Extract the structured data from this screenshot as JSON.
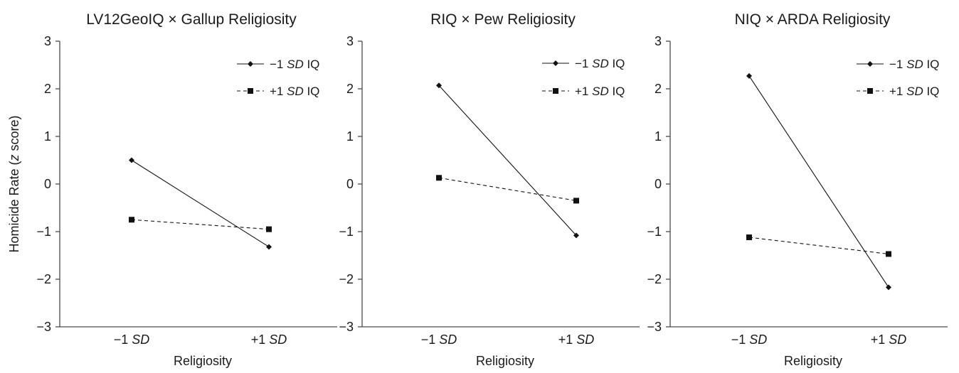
{
  "chart_data": [
    {
      "type": "line",
      "title": "LV12GeoIQ × Gallup Religiosity",
      "xlabel": "Religiosity",
      "ylabel": "Homicide Rate (z score)",
      "ylim": [
        -3,
        3
      ],
      "yticks": [
        "3",
        "2",
        "1",
        "0",
        "−1",
        "−2",
        "−3"
      ],
      "categories": [
        {
          "prefix": "−1 ",
          "italic": "SD"
        },
        {
          "prefix": "+1 ",
          "italic": "SD"
        }
      ],
      "legend_position": "top-right",
      "series": [
        {
          "label_prefix": "−1 ",
          "label_italic": "SD",
          "label_suffix": " IQ",
          "values": [
            0.5,
            -1.32
          ],
          "style": "solid",
          "marker": "diamond"
        },
        {
          "label_prefix": "+1 ",
          "label_italic": "SD",
          "label_suffix": " IQ",
          "values": [
            -0.75,
            -0.95
          ],
          "style": "dashed",
          "marker": "square"
        }
      ]
    },
    {
      "type": "line",
      "title": "RIQ × Pew Religiosity",
      "xlabel": "Religiosity",
      "ylabel": "",
      "ylim": [
        -3,
        3
      ],
      "yticks": [
        "3",
        "2",
        "1",
        "0",
        "−1",
        "−2",
        "−3"
      ],
      "categories": [
        {
          "prefix": "−1 ",
          "italic": "SD"
        },
        {
          "prefix": "+1 ",
          "italic": "SD"
        }
      ],
      "legend_position": "top-right",
      "series": [
        {
          "label_prefix": "−1 ",
          "label_italic": "SD",
          "label_suffix": " IQ",
          "values": [
            2.07,
            -1.08
          ],
          "style": "solid",
          "marker": "diamond"
        },
        {
          "label_prefix": "+1 ",
          "label_italic": "SD",
          "label_suffix": " IQ",
          "values": [
            0.13,
            -0.35
          ],
          "style": "dashed",
          "marker": "square"
        }
      ]
    },
    {
      "type": "line",
      "title": "NIQ × ARDA Religiosity",
      "xlabel": "Religiosity",
      "ylabel": "",
      "ylim": [
        -3,
        3
      ],
      "yticks": [
        "3",
        "2",
        "1",
        "0",
        "−1",
        "−2",
        "−3"
      ],
      "categories": [
        {
          "prefix": "−1 ",
          "italic": "SD"
        },
        {
          "prefix": "+1 ",
          "italic": "SD"
        }
      ],
      "legend_position": "top-right",
      "series": [
        {
          "label_prefix": "−1 ",
          "label_italic": "SD",
          "label_suffix": " IQ",
          "values": [
            2.27,
            -2.17
          ],
          "style": "solid",
          "marker": "diamond"
        },
        {
          "label_prefix": "+1 ",
          "label_italic": "SD",
          "label_suffix": " IQ",
          "values": [
            -1.12,
            -1.47
          ],
          "style": "dashed",
          "marker": "square"
        }
      ]
    }
  ]
}
